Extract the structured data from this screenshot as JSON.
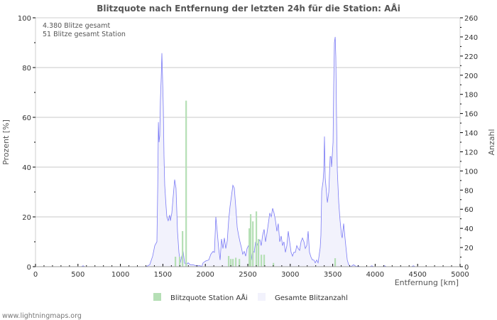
{
  "chart_data": {
    "type": "bar+area",
    "title": "Blitzquote nach Entfernung der letzten 24h für die Station: AÅi",
    "info_lines": [
      "4.380 Blitze gesamt",
      "51 Blitze gesamt Station"
    ],
    "xlabel": "Entfernung   [km]",
    "ylabel_left": "Prozent   [%]",
    "ylabel_right": "Anzahl",
    "xlim": [
      0,
      5000
    ],
    "ylim_left": [
      0,
      100
    ],
    "ylim_right": [
      0,
      260
    ],
    "x_ticks": [
      "0",
      "500",
      "1000",
      "1500",
      "2000",
      "2500",
      "3000",
      "3500",
      "4000",
      "4500",
      "5000"
    ],
    "y_left_ticks": [
      "0",
      "20",
      "40",
      "60",
      "80",
      "100"
    ],
    "y_right_ticks": [
      "0",
      "20",
      "40",
      "60",
      "80",
      "100",
      "120",
      "140",
      "160",
      "180",
      "200",
      "220",
      "240",
      "260"
    ],
    "grid": true,
    "legend_position": "bottom",
    "colors": {
      "station": "#b5dfb5",
      "total_fill": "#f2f2fc",
      "total_line": "#7b7bf5",
      "grid": "#c8c8c8"
    },
    "series": [
      {
        "name": "Blitzquote Station AÅi",
        "axis": "left",
        "kind": "bar",
        "x": [
          1647,
          1697,
          1731,
          1773,
          2274,
          2299,
          2324,
          2358,
          2400,
          2517,
          2533,
          2559,
          2600,
          2625,
          2659,
          2692,
          2801,
          3528
        ],
        "values": [
          4,
          4,
          14.3,
          66.7,
          4.3,
          3.1,
          3.1,
          3.6,
          3.1,
          15.4,
          21.1,
          18.2,
          22.2,
          11.1,
          4.8,
          4.8,
          1.5,
          3.4
        ]
      },
      {
        "name": "Gesamte Blitzanzahl",
        "axis": "right",
        "kind": "area",
        "x": [
          0,
          540,
          560,
          580,
          1300,
          1345,
          1380,
          1405,
          1430,
          1440,
          1447,
          1455,
          1463,
          1471,
          1480,
          1488,
          1497,
          1505,
          1513,
          1522,
          1538,
          1547,
          1563,
          1580,
          1589,
          1605,
          1622,
          1639,
          1655,
          1672,
          1689,
          1706,
          1722,
          1739,
          1756,
          1773,
          1798,
          1823,
          1856,
          1890,
          1940,
          1957,
          1973,
          2007,
          2040,
          2065,
          2090,
          2107,
          2124,
          2140,
          2157,
          2174,
          2191,
          2207,
          2224,
          2241,
          2258,
          2274,
          2291,
          2308,
          2324,
          2341,
          2358,
          2375,
          2391,
          2408,
          2425,
          2441,
          2458,
          2475,
          2492,
          2508,
          2525,
          2542,
          2558,
          2575,
          2592,
          2608,
          2625,
          2642,
          2658,
          2675,
          2692,
          2709,
          2726,
          2742,
          2759,
          2776,
          2793,
          2809,
          2826,
          2843,
          2859,
          2876,
          2893,
          2910,
          2926,
          2943,
          2960,
          2977,
          2993,
          3010,
          3027,
          3043,
          3060,
          3077,
          3094,
          3110,
          3127,
          3144,
          3161,
          3177,
          3194,
          3211,
          3227,
          3244,
          3261,
          3278,
          3294,
          3311,
          3328,
          3353,
          3361,
          3370,
          3386,
          3395,
          3403,
          3411,
          3437,
          3454,
          3470,
          3479,
          3487,
          3504,
          3512,
          3520,
          3529,
          3537,
          3545,
          3554,
          3571,
          3587,
          3604,
          3612,
          3629,
          3637,
          3654,
          3671,
          3688,
          3712,
          3746,
          3779,
          3800,
          3820,
          3940,
          3960,
          3980,
          4090,
          4110,
          4130,
          4430,
          4450,
          4470,
          5000
        ],
        "values": [
          0,
          0,
          1,
          0,
          0,
          2,
          11,
          22,
          26,
          86,
          151,
          130,
          137,
          174,
          196,
          223,
          196,
          167,
          115,
          85,
          63,
          52,
          48,
          54,
          48,
          56,
          74,
          91,
          82,
          37,
          15,
          4,
          11,
          16,
          4,
          2,
          4,
          2,
          2,
          1,
          1,
          0,
          4,
          6,
          7,
          13,
          16,
          15,
          52,
          37,
          19,
          7,
          29,
          19,
          30,
          19,
          27,
          48,
          63,
          74,
          85,
          82,
          63,
          41,
          33,
          26,
          20,
          13,
          16,
          11,
          19,
          22,
          19,
          7,
          17,
          15,
          26,
          22,
          26,
          28,
          22,
          33,
          39,
          26,
          35,
          45,
          56,
          52,
          61,
          56,
          48,
          37,
          45,
          26,
          32,
          22,
          26,
          15,
          22,
          37,
          26,
          15,
          11,
          15,
          15,
          22,
          19,
          17,
          26,
          30,
          26,
          19,
          22,
          37,
          15,
          10,
          7,
          7,
          4,
          7,
          4,
          20,
          33,
          79,
          89,
          100,
          136,
          93,
          67,
          78,
          115,
          115,
          104,
          130,
          189,
          234,
          240,
          219,
          156,
          100,
          67,
          48,
          33,
          30,
          45,
          37,
          22,
          7,
          2,
          0,
          2,
          0,
          1,
          0,
          0,
          1,
          0,
          0,
          1,
          0,
          0,
          1,
          0,
          0
        ]
      }
    ]
  },
  "footer": "www.lightningmaps.org"
}
